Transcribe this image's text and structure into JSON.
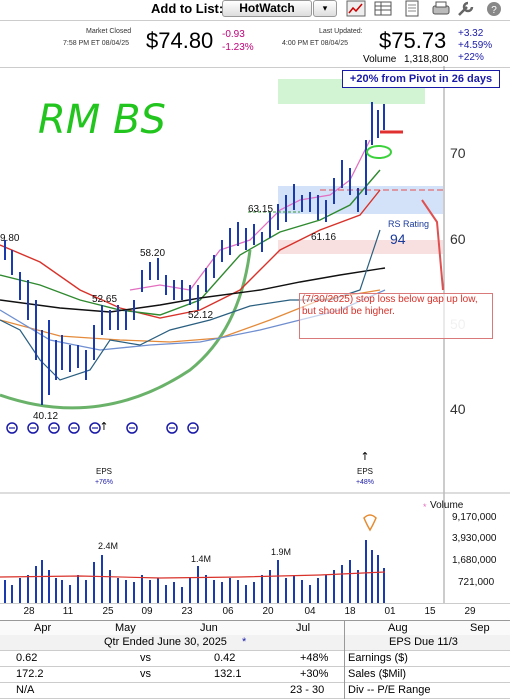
{
  "toolbar": {
    "add_to_list_label": "Add to List:",
    "list_value": "HotWatch",
    "dropdown_glyph": "▾",
    "icons": [
      "chart-icon",
      "grid-icon",
      "document-icon",
      "print-icon",
      "wrench-icon",
      "help-icon"
    ]
  },
  "quote": {
    "market_closed_label": "Market Closed",
    "closed_time": "7:58 PM ET 08/04/25",
    "closed_price": "$74.80",
    "closed_change": "-0.93",
    "closed_change_pct": "-1.23%",
    "last_updated_label": "Last Updated:",
    "updated_time": "4:00 PM ET 08/04/25",
    "last_price": "$75.73",
    "last_change": "+3.32",
    "last_change_pct": "+4.59%",
    "ytd_pct": "+22%",
    "volume_label": "Volume",
    "volume_value": "1,318,800"
  },
  "chart": {
    "pivot_text": "+20% from Pivot in 26 days",
    "handwritten_note": "RM BS",
    "price_axis": [
      "70",
      "60",
      "50",
      "40"
    ],
    "price_labels": {
      "p9_80": "9.80",
      "p58_20": "58.20",
      "p63_15": "63.15",
      "p61_16": "61.16",
      "p52_65": "52.65",
      "p52_12": "52.12",
      "p40_12": "40.12"
    },
    "rs_rating_label": "RS Rating",
    "rs_rating_value": "94",
    "stop_note": "(7/30/2025) stop loss below gap up low, but should be higher.",
    "eps_left_label": "EPS",
    "eps_left_pct": "+76%",
    "eps_right_label": "EPS",
    "eps_right_pct": "+48%",
    "volume_title": "Volume",
    "volume_axis": [
      "9,170,000",
      "3,930,000",
      "1,680,000",
      "721,000"
    ],
    "volume_labels": [
      "2.4M",
      "1.4M",
      "1.9M"
    ],
    "dates": [
      "28",
      "11",
      "25",
      "09",
      "23",
      "06",
      "20",
      "04",
      "18",
      "01",
      "15",
      "29"
    ],
    "months": [
      "Apr",
      "May",
      "Jun",
      "Jul",
      "Aug",
      "Sep"
    ],
    "colors": {
      "green": "#3a9a3a",
      "red": "#d8322a",
      "blue": "#1a1aa8",
      "pink": "#e36fbf",
      "price_bar": "#1a3ab0"
    }
  },
  "table": {
    "qtr_header": "Qtr Ended June 30, 2025",
    "qtr_star": "*",
    "eps_due": "EPS Due 11/3",
    "rows": [
      {
        "a": "0.62",
        "vs": "vs",
        "b": "0.42",
        "chg": "+48%",
        "label": "Earnings ($)"
      },
      {
        "a": "172.2",
        "vs": "vs",
        "b": "132.1",
        "chg": "+30%",
        "label": "Sales ($Mil)"
      },
      {
        "a": "N/A",
        "vs": "",
        "b": "",
        "chg": "23 - 30",
        "label": "Div -- P/E Range"
      }
    ]
  }
}
